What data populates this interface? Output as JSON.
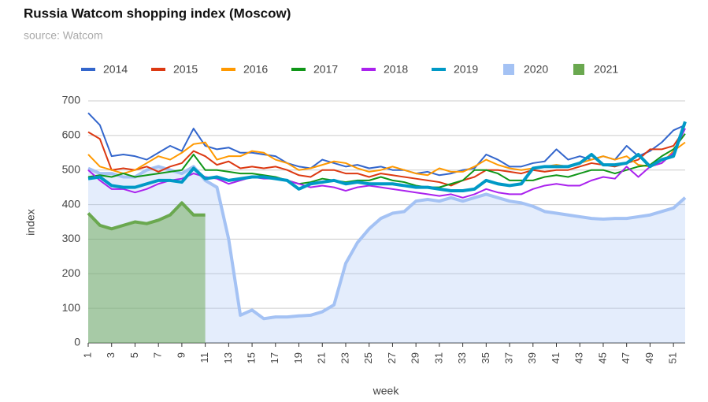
{
  "chart_data": {
    "type": "line",
    "title": "Russia Watcom shopping index (Moscow)",
    "subtitle": "source: Watcom",
    "x_label": "week",
    "y_label": "index",
    "x": [
      1,
      2,
      3,
      4,
      5,
      6,
      7,
      8,
      9,
      10,
      11,
      12,
      13,
      14,
      15,
      16,
      17,
      18,
      19,
      20,
      21,
      22,
      23,
      24,
      25,
      26,
      27,
      28,
      29,
      30,
      31,
      32,
      33,
      34,
      35,
      36,
      37,
      38,
      39,
      40,
      41,
      42,
      43,
      44,
      45,
      46,
      47,
      48,
      49,
      50,
      51,
      52
    ],
    "xlim": [
      1,
      52
    ],
    "xticks": [
      1,
      3,
      5,
      7,
      9,
      11,
      13,
      15,
      17,
      19,
      21,
      23,
      25,
      27,
      29,
      31,
      33,
      35,
      37,
      39,
      41,
      43,
      45,
      47,
      49,
      51
    ],
    "ylim": [
      0,
      700
    ],
    "yticks": [
      0,
      100,
      200,
      300,
      400,
      500,
      600,
      700
    ],
    "grid": true,
    "legend": "top",
    "series": [
      {
        "name": "2014",
        "color": "#3366cc",
        "width": 2,
        "values": [
          665,
          630,
          540,
          545,
          540,
          530,
          550,
          570,
          555,
          620,
          570,
          560,
          565,
          550,
          550,
          545,
          540,
          520,
          510,
          505,
          530,
          520,
          510,
          515,
          505,
          510,
          500,
          500,
          490,
          495,
          485,
          490,
          500,
          505,
          545,
          530,
          510,
          510,
          520,
          525,
          560,
          530,
          540,
          530,
          540,
          530,
          570,
          540,
          555,
          580,
          615,
          630
        ]
      },
      {
        "name": "2015",
        "color": "#dc3912",
        "width": 2,
        "values": [
          610,
          590,
          500,
          505,
          500,
          510,
          495,
          510,
          520,
          555,
          540,
          515,
          525,
          505,
          510,
          505,
          510,
          500,
          485,
          480,
          500,
          500,
          490,
          490,
          480,
          490,
          485,
          480,
          475,
          470,
          465,
          455,
          470,
          480,
          500,
          500,
          495,
          490,
          500,
          495,
          500,
          500,
          510,
          520,
          515,
          510,
          520,
          530,
          560,
          560,
          570,
          620
        ]
      },
      {
        "name": "2016",
        "color": "#ff9900",
        "width": 2,
        "values": [
          545,
          510,
          500,
          490,
          500,
          520,
          540,
          530,
          550,
          575,
          580,
          530,
          540,
          540,
          555,
          550,
          530,
          520,
          500,
          505,
          515,
          525,
          520,
          505,
          495,
          500,
          510,
          500,
          490,
          485,
          505,
          495,
          495,
          510,
          530,
          515,
          505,
          500,
          505,
          510,
          515,
          510,
          520,
          530,
          540,
          530,
          540,
          515,
          510,
          520,
          555,
          580
        ]
      },
      {
        "name": "2017",
        "color": "#109618",
        "width": 2,
        "values": [
          480,
          485,
          480,
          490,
          480,
          485,
          490,
          495,
          500,
          545,
          500,
          500,
          495,
          490,
          490,
          485,
          480,
          470,
          460,
          465,
          475,
          470,
          465,
          470,
          470,
          480,
          470,
          465,
          455,
          450,
          450,
          460,
          470,
          500,
          500,
          490,
          470,
          470,
          470,
          480,
          485,
          480,
          490,
          500,
          500,
          490,
          500,
          510,
          515,
          540,
          560,
          605
        ]
      },
      {
        "name": "2018",
        "color": "#aa22ee",
        "width": 2,
        "values": [
          500,
          470,
          445,
          445,
          435,
          445,
          460,
          470,
          475,
          490,
          480,
          475,
          460,
          470,
          480,
          475,
          475,
          470,
          460,
          450,
          455,
          450,
          440,
          450,
          455,
          450,
          445,
          440,
          435,
          430,
          425,
          430,
          420,
          430,
          445,
          435,
          430,
          430,
          445,
          455,
          460,
          455,
          455,
          470,
          480,
          475,
          510,
          480,
          510,
          520,
          550,
          620
        ]
      },
      {
        "name": "2019",
        "color": "#0099c6",
        "width": 4,
        "values": [
          475,
          480,
          455,
          450,
          450,
          460,
          470,
          470,
          465,
          505,
          475,
          480,
          470,
          475,
          480,
          480,
          475,
          470,
          445,
          460,
          465,
          470,
          460,
          465,
          460,
          460,
          460,
          455,
          450,
          450,
          445,
          440,
          440,
          445,
          470,
          460,
          455,
          460,
          505,
          510,
          510,
          510,
          520,
          545,
          515,
          515,
          520,
          545,
          510,
          530,
          540,
          640
        ]
      },
      {
        "name": "2020",
        "color": "#a4c2f4",
        "width": 4,
        "area": true,
        "values": [
          505,
          490,
          490,
          480,
          480,
          500,
          510,
          500,
          490,
          510,
          470,
          450,
          300,
          80,
          95,
          70,
          75,
          75,
          78,
          80,
          90,
          110,
          230,
          290,
          330,
          360,
          375,
          380,
          410,
          415,
          410,
          420,
          410,
          420,
          430,
          420,
          410,
          405,
          395,
          380,
          375,
          370,
          365,
          360,
          358,
          360,
          360,
          365,
          370,
          380,
          390,
          420
        ]
      },
      {
        "name": "2021",
        "color": "#6aa84f",
        "width": 4,
        "area": true,
        "values": [
          375,
          340,
          330,
          340,
          350,
          345,
          355,
          370,
          405,
          370,
          370,
          null,
          null,
          null,
          null,
          null,
          null,
          null,
          null,
          null,
          null,
          null,
          null,
          null,
          null,
          null,
          null,
          null,
          null,
          null,
          null,
          null,
          null,
          null,
          null,
          null,
          null,
          null,
          null,
          null,
          null,
          null,
          null,
          null,
          null,
          null,
          null,
          null,
          null,
          null,
          null,
          null
        ]
      }
    ]
  }
}
